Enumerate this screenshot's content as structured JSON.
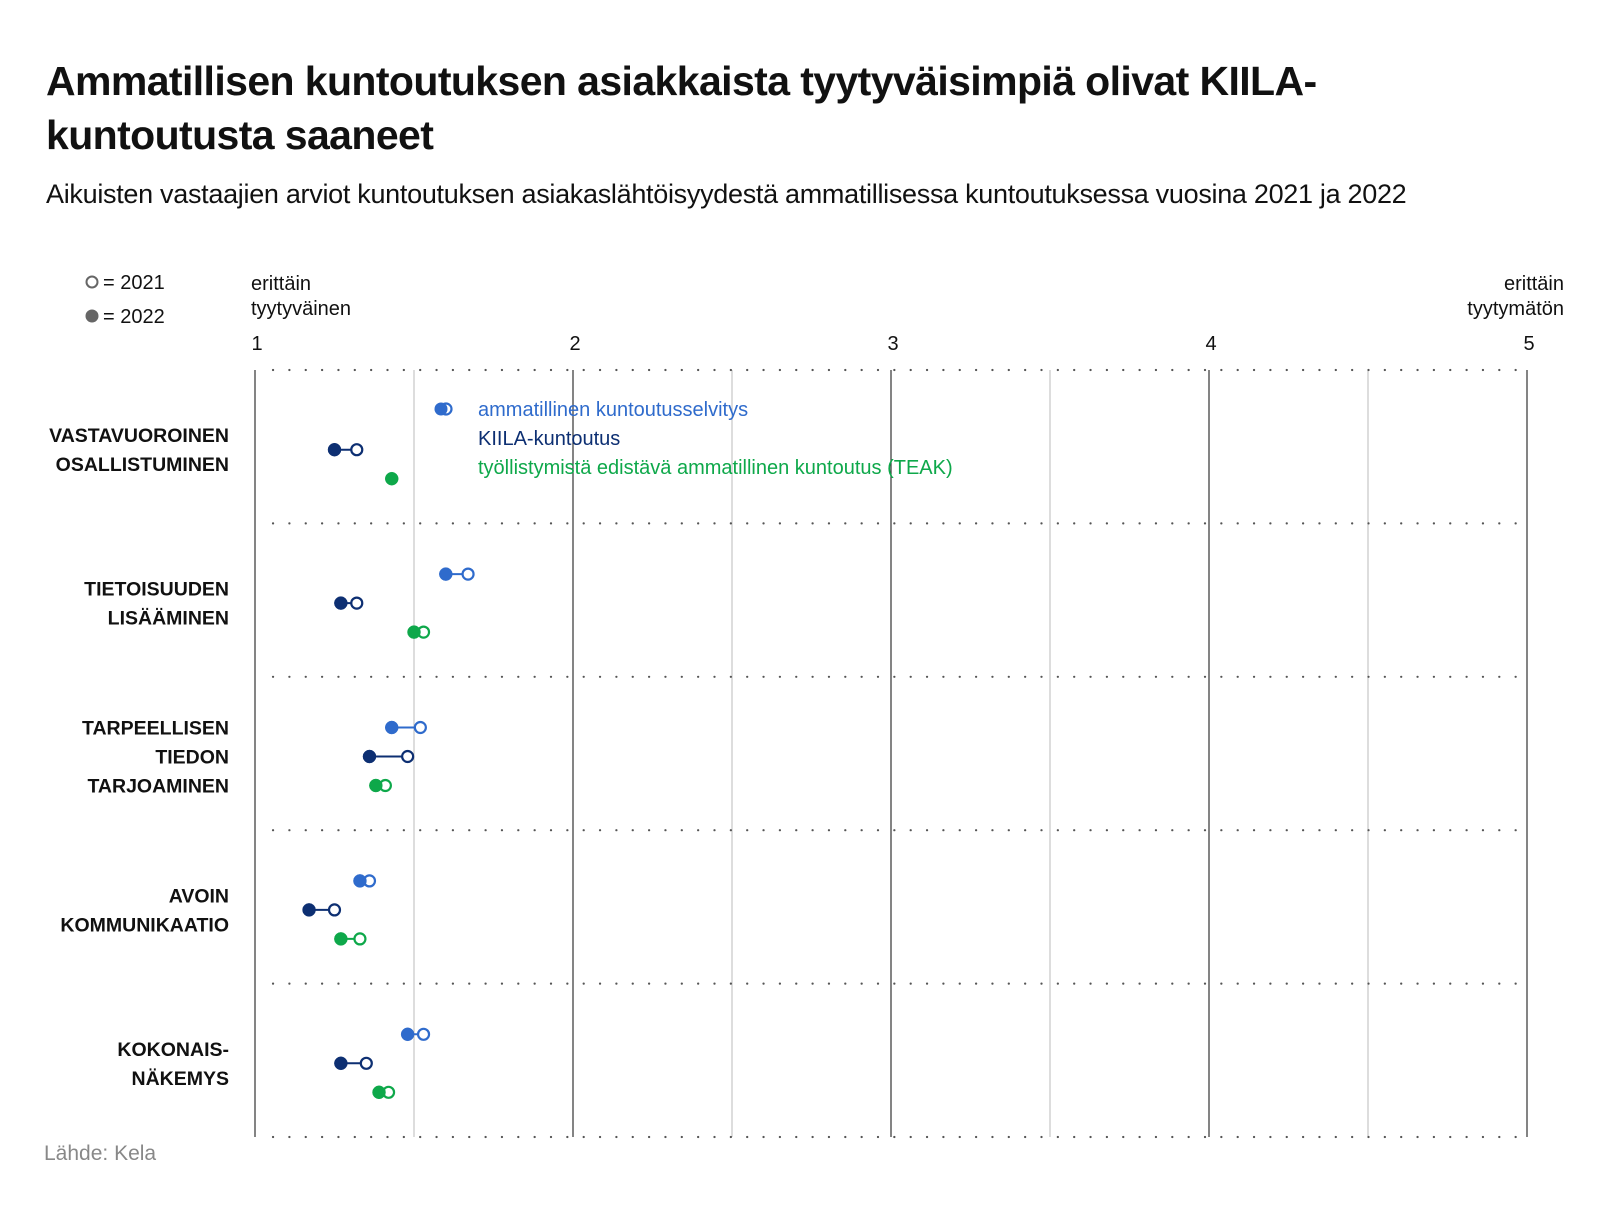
{
  "title": "Ammatillisen kuntoutuksen asiakkaista tyytyväisimpiä olivat KIILA-kuntoutusta saaneet",
  "subtitle": "Aikuisten vastaajien arviot kuntoutuksen asiakaslähtöisyydestä ammatillisessa kuntoutuksessa vuosina 2021 ja 2022",
  "source": "Lähde: Kela",
  "chart_data": {
    "type": "scatter",
    "subtype": "dumbbell",
    "xlim": [
      1,
      5
    ],
    "x_ticks": [
      1,
      2,
      3,
      4,
      5
    ],
    "x_end_labels": {
      "left": [
        "erittäin",
        "tyytyväinen"
      ],
      "right": [
        "erittäin",
        "tyytymätön"
      ]
    },
    "year_legend": [
      {
        "label": "= 2021",
        "marker": "hollow"
      },
      {
        "label": "= 2022",
        "marker": "filled"
      }
    ],
    "series_legend": [
      {
        "label": "ammatillinen kuntoutusselvitys",
        "color": "#2f6bcc"
      },
      {
        "label": "KIILA-kuntoutus",
        "color": "#0d2f72"
      },
      {
        "label": "työllistymistä edistävä ammatillinen kuntoutus (TEAK)",
        "color": "#0ea84a"
      }
    ],
    "categories": [
      {
        "label": [
          "VASTAVUOROINEN",
          "OSALLISTUMINEN"
        ],
        "values": [
          {
            "series": 0,
            "y2021": null,
            "y2022": null
          },
          {
            "series": 1,
            "y2021": 1.32,
            "y2022": 1.25
          },
          {
            "series": 2,
            "y2021": 1.43,
            "y2022": 1.43
          }
        ]
      },
      {
        "label": [
          "TIETOISUUDEN",
          "LISÄÄMINEN"
        ],
        "values": [
          {
            "series": 0,
            "y2021": 1.67,
            "y2022": 1.6
          },
          {
            "series": 1,
            "y2021": 1.32,
            "y2022": 1.27
          },
          {
            "series": 2,
            "y2021": 1.53,
            "y2022": 1.5
          }
        ]
      },
      {
        "label": [
          "TARPEELLISEN",
          "TIEDON",
          "TARJOAMINEN"
        ],
        "values": [
          {
            "series": 0,
            "y2021": 1.52,
            "y2022": 1.43
          },
          {
            "series": 1,
            "y2021": 1.48,
            "y2022": 1.36
          },
          {
            "series": 2,
            "y2021": 1.41,
            "y2022": 1.38
          }
        ]
      },
      {
        "label": [
          "AVOIN",
          "KOMMUNIKAATIO"
        ],
        "values": [
          {
            "series": 0,
            "y2021": 1.36,
            "y2022": 1.33
          },
          {
            "series": 1,
            "y2021": 1.25,
            "y2022": 1.17
          },
          {
            "series": 2,
            "y2021": 1.33,
            "y2022": 1.27
          }
        ]
      },
      {
        "label": [
          "KOKONAIS-",
          "NÄKEMYS"
        ],
        "values": [
          {
            "series": 0,
            "y2021": 1.53,
            "y2022": 1.48
          },
          {
            "series": 1,
            "y2021": 1.35,
            "y2022": 1.27
          },
          {
            "series": 2,
            "y2021": 1.42,
            "y2022": 1.39
          }
        ]
      }
    ]
  }
}
